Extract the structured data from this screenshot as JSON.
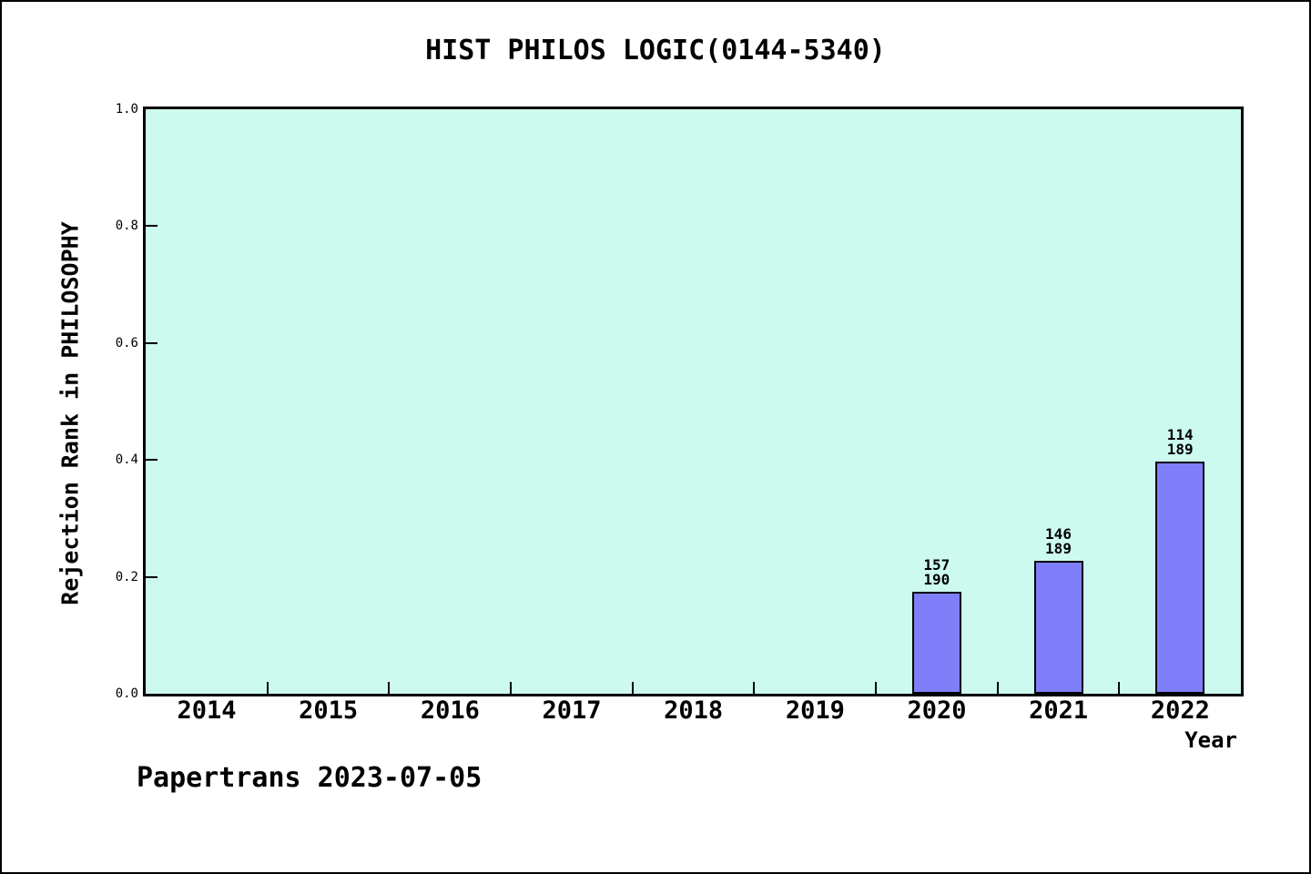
{
  "chart_data": {
    "type": "bar",
    "title": "HIST PHILOS LOGIC(0144-5340)",
    "xlabel": "Year",
    "ylabel": "Rejection Rank in PHILOSOPHY",
    "ylim": [
      0.0,
      1.0
    ],
    "yticks": [
      {
        "label": "0.0",
        "value": 0.0
      },
      {
        "label": "0.2",
        "value": 0.2
      },
      {
        "label": "0.4",
        "value": 0.4
      },
      {
        "label": "0.6",
        "value": 0.6
      },
      {
        "label": "0.8",
        "value": 0.8
      },
      {
        "label": "1.0",
        "value": 1.0
      }
    ],
    "categories": [
      "2014",
      "2015",
      "2016",
      "2017",
      "2018",
      "2019",
      "2020",
      "2021",
      "2022"
    ],
    "bars": [
      {
        "year": "2020",
        "rank": "157",
        "total": "190",
        "value": 0.1737
      },
      {
        "year": "2021",
        "rank": "146",
        "total": "189",
        "value": 0.2275
      },
      {
        "year": "2022",
        "rank": "114",
        "total": "189",
        "value": 0.3968
      }
    ],
    "grid": false,
    "legend_position": "none",
    "colors": {
      "bar_fill": "#7f7ffa",
      "bar_border": "#000000",
      "plot_background": "#ccfaee",
      "page_background": "#ffffff",
      "axis": "#000000",
      "text": "#000000"
    }
  },
  "footer": {
    "text": "Papertrans 2023-07-05"
  }
}
